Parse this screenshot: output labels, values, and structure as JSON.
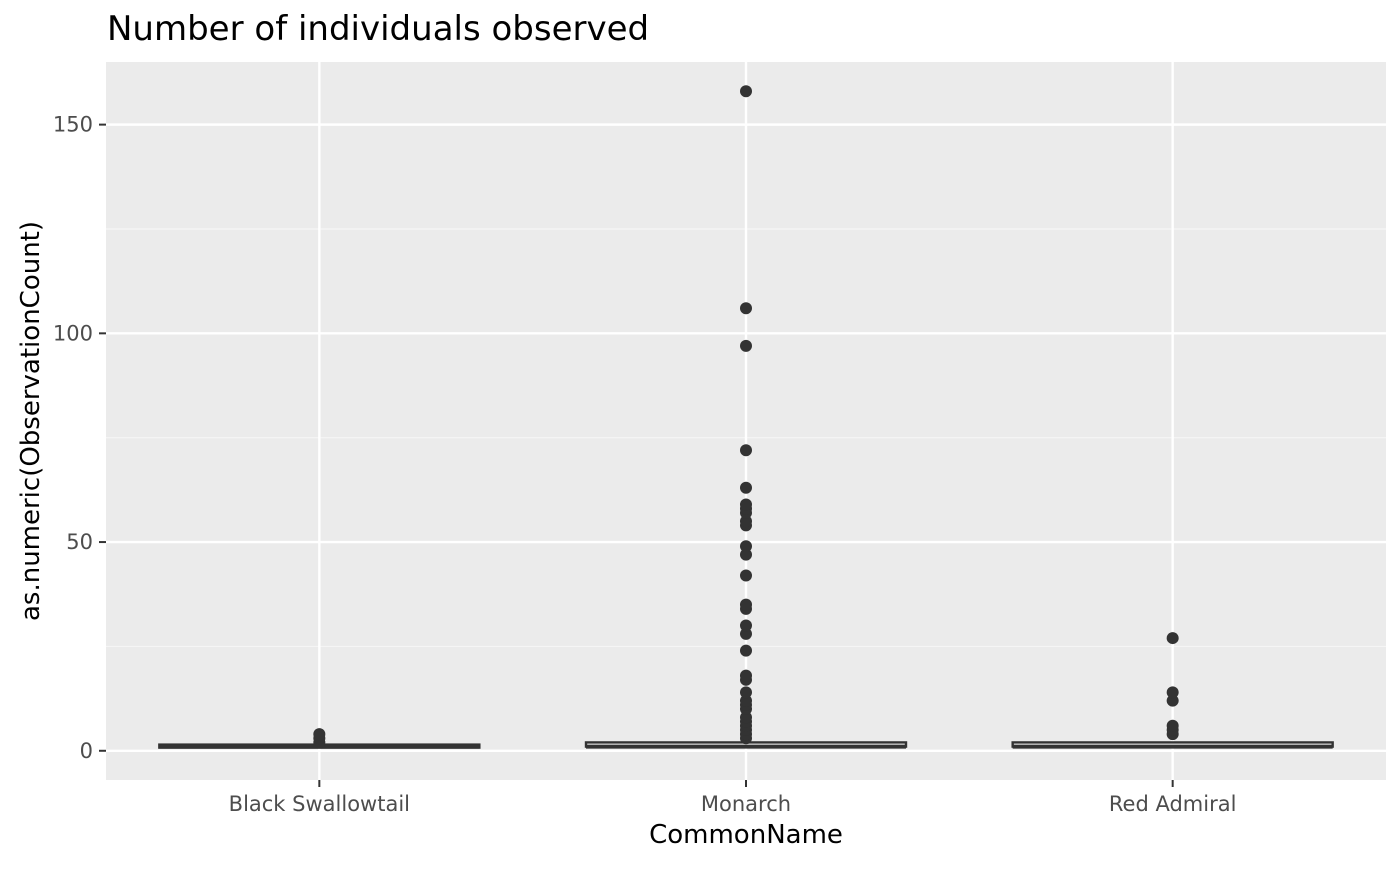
{
  "chart_data": {
    "type": "box",
    "title": "Number of individuals observed",
    "xlabel": "CommonName",
    "ylabel": "as.numeric(ObservationCount)",
    "categories": [
      "Black Swallowtail",
      "Monarch",
      "Red Admiral"
    ],
    "y_ticks": [
      0,
      50,
      100,
      150
    ],
    "ylim": [
      -7,
      165
    ],
    "grid": true,
    "colors": {
      "panel_background": "#ebebeb",
      "grid_major": "#ffffff",
      "grid_minor": "#f5f5f5",
      "box_outline": "#333333",
      "outlier_point": "#333333"
    },
    "boxes": [
      {
        "category": "Black Swallowtail",
        "lower_whisker": 1,
        "q1": 1,
        "median": 1,
        "q3": 1,
        "upper_whisker": 1,
        "outliers": [
          2,
          3,
          4
        ]
      },
      {
        "category": "Monarch",
        "lower_whisker": 1,
        "q1": 1,
        "median": 1,
        "q3": 2,
        "upper_whisker": 2,
        "outliers": [
          3,
          4,
          5,
          6,
          7,
          8,
          10,
          11,
          12,
          14,
          17,
          18,
          24,
          28,
          30,
          34,
          35,
          42,
          47,
          49,
          54,
          55,
          57,
          58,
          59,
          63,
          72,
          97,
          106,
          158
        ]
      },
      {
        "category": "Red Admiral",
        "lower_whisker": 1,
        "q1": 1,
        "median": 1,
        "q3": 2,
        "upper_whisker": 2,
        "outliers": [
          4,
          5,
          6,
          12,
          14,
          27
        ]
      }
    ]
  }
}
